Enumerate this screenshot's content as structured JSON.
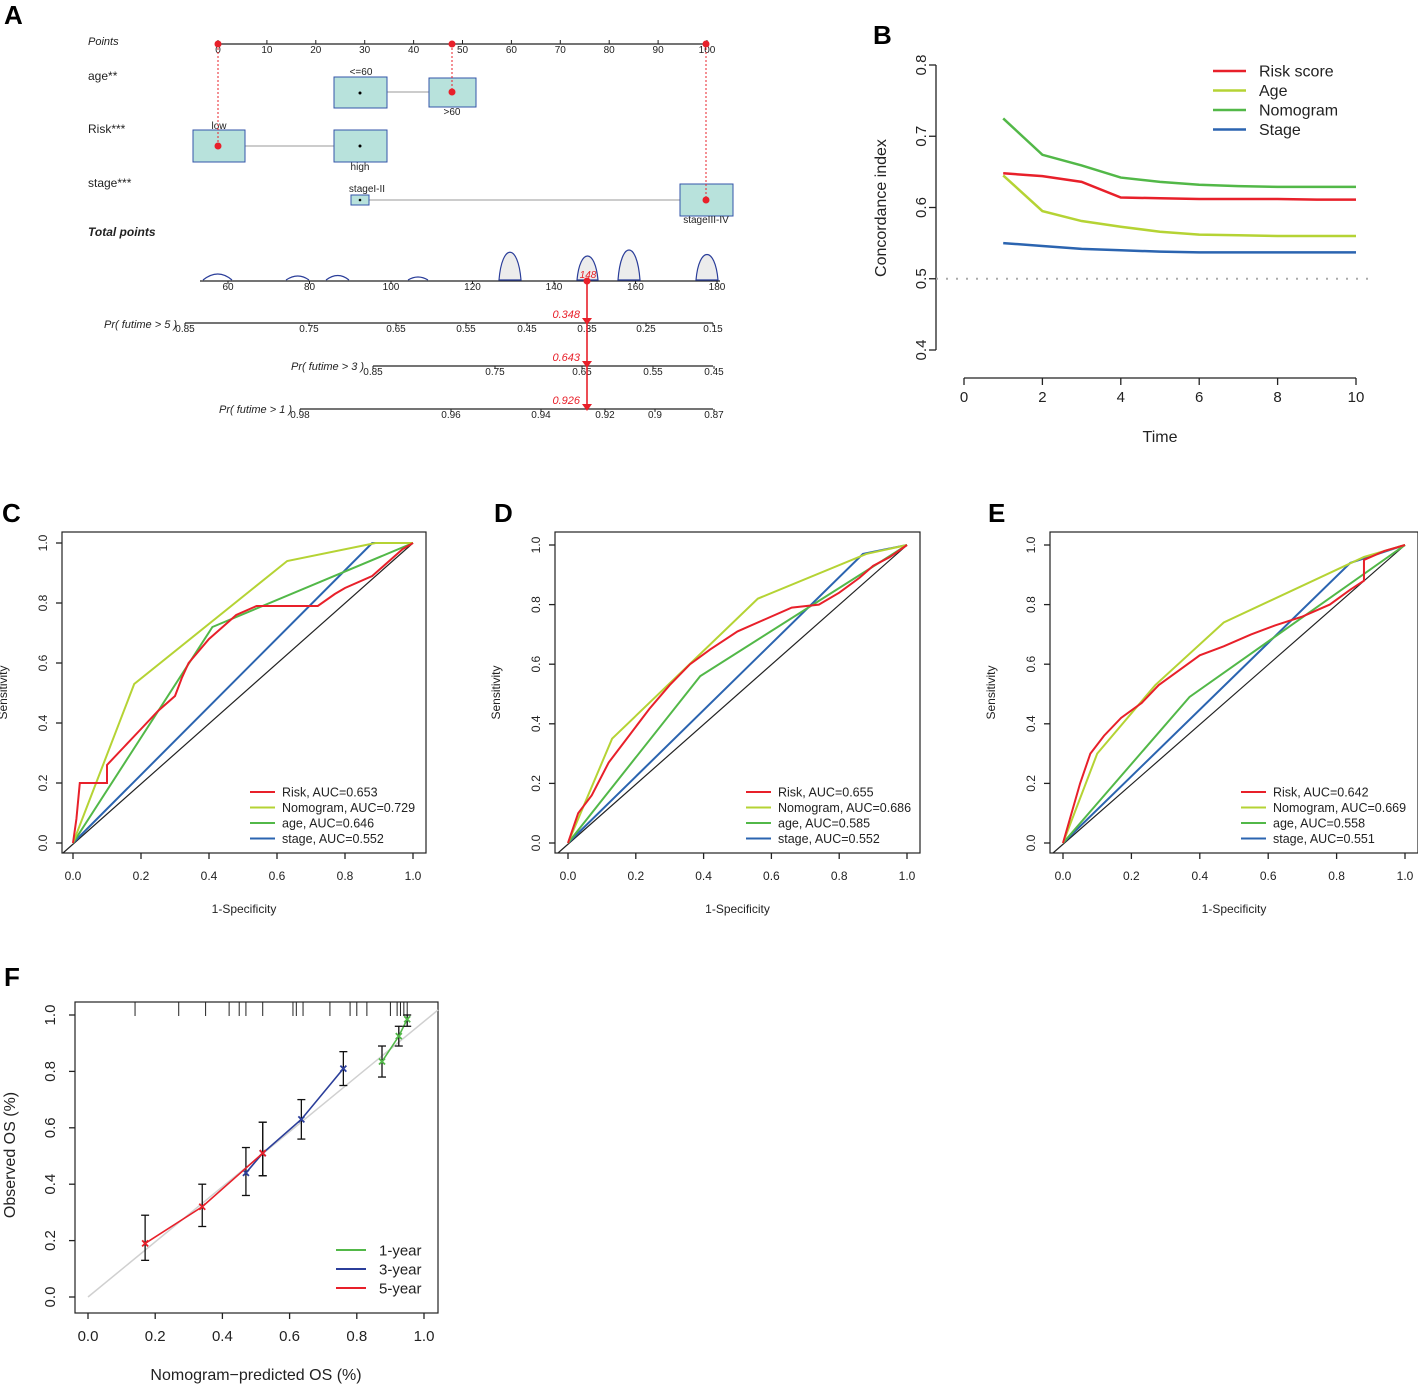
{
  "panels": {
    "A": {
      "label": "A",
      "row_labels": [
        "Points",
        "age**",
        "Risk***",
        "stage***",
        "Total points",
        "Pr( futime > 5 )",
        "Pr( futime > 3 )",
        "Pr( futime > 1 )"
      ],
      "points_ticks": [
        "0",
        "10",
        "20",
        "30",
        "40",
        "50",
        "60",
        "70",
        "80",
        "90",
        "100"
      ],
      "age_levels": [
        "<=60",
        ">60"
      ],
      "risk_levels": [
        "low",
        "high"
      ],
      "stage_levels": [
        "stageI-II",
        "stageIII-IV"
      ],
      "total_ticks": [
        "60",
        "80",
        "100",
        "120",
        "140",
        "160",
        "180"
      ],
      "total_value": "148",
      "pr5_ticks": [
        "0.85",
        "0.75",
        "0.65",
        "0.55",
        "0.45",
        "0.35",
        "0.25",
        "0.15"
      ],
      "pr3_ticks": [
        "0.85",
        "0.75",
        "0.65",
        "0.55",
        "0.45"
      ],
      "pr1_ticks": [
        "0.98",
        "0.96",
        "0.94",
        "0.92",
        "0.9",
        "0.87"
      ],
      "pred_values": [
        "0.348",
        "0.643",
        "0.926"
      ],
      "colors": {
        "box": "#b8e2dc",
        "box_border": "#3355aa",
        "marker": "#e8202a"
      }
    },
    "B": {
      "label": "B"
    },
    "C": {
      "label": "C"
    },
    "D": {
      "label": "D"
    },
    "E": {
      "label": "E"
    },
    "F": {
      "label": "F"
    }
  },
  "chart_data": [
    {
      "id": "B",
      "type": "line",
      "title": "",
      "xlabel": "Time",
      "ylabel": "Concordance index",
      "xlim": [
        0,
        10
      ],
      "ylim": [
        0.4,
        0.8
      ],
      "xticks": [
        "0",
        "2",
        "4",
        "6",
        "8",
        "10"
      ],
      "yticks": [
        "0.4",
        "0.5",
        "0.6",
        "0.7",
        "0.8"
      ],
      "reference_line": 0.5,
      "x": [
        1,
        2,
        3,
        4,
        5,
        6,
        7,
        8,
        9,
        10
      ],
      "series": [
        {
          "name": "Risk score",
          "color": "#e8202a",
          "values": [
            0.648,
            0.644,
            0.636,
            0.614,
            0.613,
            0.612,
            0.612,
            0.612,
            0.611,
            0.611
          ]
        },
        {
          "name": "Age",
          "color": "#b5d334",
          "values": [
            0.645,
            0.595,
            0.581,
            0.573,
            0.566,
            0.562,
            0.561,
            0.56,
            0.56,
            0.56
          ]
        },
        {
          "name": "Nomogram",
          "color": "#52b848",
          "values": [
            0.725,
            0.674,
            0.659,
            0.642,
            0.636,
            0.632,
            0.63,
            0.629,
            0.629,
            0.629
          ]
        },
        {
          "name": "Stage",
          "color": "#2b64b0",
          "values": [
            0.55,
            0.546,
            0.542,
            0.54,
            0.538,
            0.537,
            0.537,
            0.537,
            0.537,
            0.537
          ]
        }
      ]
    },
    {
      "id": "C",
      "type": "line",
      "title": "",
      "xlabel": "1-Specificity",
      "ylabel": "Sensitivity",
      "xlim": [
        0,
        1
      ],
      "ylim": [
        0,
        1
      ],
      "xticks": [
        "0.0",
        "0.2",
        "0.4",
        "0.6",
        "0.8",
        "1.0"
      ],
      "yticks": [
        "0.0",
        "0.2",
        "0.4",
        "0.6",
        "0.8",
        "1.0"
      ],
      "series": [
        {
          "name": "Risk, AUC=0.653",
          "color": "#e8202a",
          "points": [
            [
              0,
              0
            ],
            [
              0.01,
              0.08
            ],
            [
              0.02,
              0.2
            ],
            [
              0.1,
              0.2
            ],
            [
              0.1,
              0.26
            ],
            [
              0.15,
              0.32
            ],
            [
              0.2,
              0.38
            ],
            [
              0.25,
              0.44
            ],
            [
              0.3,
              0.49
            ],
            [
              0.32,
              0.55
            ],
            [
              0.34,
              0.6
            ],
            [
              0.37,
              0.64
            ],
            [
              0.4,
              0.68
            ],
            [
              0.44,
              0.72
            ],
            [
              0.48,
              0.76
            ],
            [
              0.54,
              0.79
            ],
            [
              0.72,
              0.79
            ],
            [
              0.77,
              0.83
            ],
            [
              0.8,
              0.85
            ],
            [
              0.88,
              0.89
            ],
            [
              0.93,
              0.94
            ],
            [
              0.97,
              0.98
            ],
            [
              1,
              1
            ]
          ]
        },
        {
          "name": "Nomogram, AUC=0.729",
          "color": "#b5d334",
          "points": [
            [
              0,
              0
            ],
            [
              0.18,
              0.53
            ],
            [
              0.63,
              0.94
            ],
            [
              0.89,
              1
            ],
            [
              1,
              1
            ]
          ]
        },
        {
          "name": "age, AUC=0.646",
          "color": "#52b848",
          "points": [
            [
              0,
              0
            ],
            [
              0.41,
              0.72
            ],
            [
              1,
              1
            ]
          ]
        },
        {
          "name": "stage, AUC=0.552",
          "color": "#2b64b0",
          "points": [
            [
              0,
              0
            ],
            [
              0.88,
              1
            ],
            [
              1,
              1
            ]
          ]
        }
      ]
    },
    {
      "id": "D",
      "type": "line",
      "title": "",
      "xlabel": "1-Specificity",
      "ylabel": "Sensitivity",
      "xlim": [
        0,
        1
      ],
      "ylim": [
        0,
        1
      ],
      "xticks": [
        "0.0",
        "0.2",
        "0.4",
        "0.6",
        "0.8",
        "1.0"
      ],
      "yticks": [
        "0.0",
        "0.2",
        "0.4",
        "0.6",
        "0.8",
        "1.0"
      ],
      "series": [
        {
          "name": "Risk, AUC=0.655",
          "color": "#e8202a",
          "points": [
            [
              0,
              0
            ],
            [
              0.03,
              0.1
            ],
            [
              0.07,
              0.16
            ],
            [
              0.12,
              0.27
            ],
            [
              0.18,
              0.36
            ],
            [
              0.24,
              0.45
            ],
            [
              0.3,
              0.53
            ],
            [
              0.36,
              0.6
            ],
            [
              0.42,
              0.65
            ],
            [
              0.5,
              0.71
            ],
            [
              0.58,
              0.75
            ],
            [
              0.66,
              0.79
            ],
            [
              0.74,
              0.8
            ],
            [
              0.8,
              0.84
            ],
            [
              0.86,
              0.89
            ],
            [
              0.9,
              0.93
            ],
            [
              0.95,
              0.96
            ],
            [
              1,
              1
            ]
          ]
        },
        {
          "name": "Nomogram, AUC=0.686",
          "color": "#b5d334",
          "points": [
            [
              0,
              0
            ],
            [
              0.13,
              0.35
            ],
            [
              0.56,
              0.82
            ],
            [
              0.88,
              0.97
            ],
            [
              1,
              1
            ]
          ]
        },
        {
          "name": "age, AUC=0.585",
          "color": "#52b848",
          "points": [
            [
              0,
              0
            ],
            [
              0.39,
              0.56
            ],
            [
              1,
              1
            ]
          ]
        },
        {
          "name": "stage, AUC=0.552",
          "color": "#2b64b0",
          "points": [
            [
              0,
              0
            ],
            [
              0.87,
              0.97
            ],
            [
              1,
              1
            ]
          ]
        }
      ]
    },
    {
      "id": "E",
      "type": "line",
      "title": "",
      "xlabel": "1-Specificity",
      "ylabel": "Sensitivity",
      "xlim": [
        0,
        1
      ],
      "ylim": [
        0,
        1
      ],
      "xticks": [
        "0.0",
        "0.2",
        "0.4",
        "0.6",
        "0.8",
        "1.0"
      ],
      "yticks": [
        "0.0",
        "0.2",
        "0.4",
        "0.6",
        "0.8",
        "1.0"
      ],
      "series": [
        {
          "name": "Risk, AUC=0.642",
          "color": "#e8202a",
          "points": [
            [
              0,
              0
            ],
            [
              0.02,
              0.08
            ],
            [
              0.05,
              0.2
            ],
            [
              0.08,
              0.3
            ],
            [
              0.12,
              0.36
            ],
            [
              0.17,
              0.42
            ],
            [
              0.23,
              0.47
            ],
            [
              0.28,
              0.53
            ],
            [
              0.34,
              0.58
            ],
            [
              0.4,
              0.63
            ],
            [
              0.47,
              0.66
            ],
            [
              0.55,
              0.7
            ],
            [
              0.62,
              0.73
            ],
            [
              0.7,
              0.76
            ],
            [
              0.78,
              0.8
            ],
            [
              0.84,
              0.85
            ],
            [
              0.88,
              0.88
            ],
            [
              0.88,
              0.95
            ],
            [
              0.94,
              0.98
            ],
            [
              1,
              1
            ]
          ]
        },
        {
          "name": "Nomogram, AUC=0.669",
          "color": "#b5d334",
          "points": [
            [
              0,
              0
            ],
            [
              0.1,
              0.3
            ],
            [
              0.27,
              0.53
            ],
            [
              0.47,
              0.74
            ],
            [
              0.88,
              0.96
            ],
            [
              1,
              1
            ]
          ]
        },
        {
          "name": "age, AUC=0.558",
          "color": "#52b848",
          "points": [
            [
              0,
              0
            ],
            [
              0.37,
              0.49
            ],
            [
              1,
              1
            ]
          ]
        },
        {
          "name": "stage, AUC=0.551",
          "color": "#2b64b0",
          "points": [
            [
              0,
              0
            ],
            [
              0.84,
              0.94
            ],
            [
              1,
              1
            ]
          ]
        }
      ]
    },
    {
      "id": "F",
      "type": "line",
      "title": "",
      "xlabel": "Nomogram−predicted OS (%)",
      "ylabel": "Observed OS (%)",
      "xlim": [
        0,
        1
      ],
      "ylim": [
        0,
        1
      ],
      "xticks": [
        "0.0",
        "0.2",
        "0.4",
        "0.6",
        "0.8",
        "1.0"
      ],
      "yticks": [
        "0.0",
        "0.2",
        "0.4",
        "0.6",
        "0.8",
        "1.0"
      ],
      "rug": [
        0.14,
        0.27,
        0.35,
        0.42,
        0.45,
        0.47,
        0.52,
        0.61,
        0.62,
        0.64,
        0.72,
        0.78,
        0.8,
        0.83,
        0.9,
        0.92,
        0.93,
        0.94,
        0.95
      ],
      "series": [
        {
          "name": "1-year",
          "color": "#52b848",
          "points": [
            [
              0.875,
              0.835
            ],
            [
              0.925,
              0.925
            ],
            [
              0.95,
              0.985
            ]
          ],
          "err_low": [
            0.78,
            0.89,
            0.96
          ],
          "err_high": [
            0.89,
            0.96,
            1.0
          ]
        },
        {
          "name": "3-year",
          "color": "#2b3e9a",
          "points": [
            [
              0.47,
              0.44
            ],
            [
              0.52,
              0.51
            ],
            [
              0.635,
              0.63
            ],
            [
              0.76,
              0.81
            ]
          ],
          "err_low": [
            0.36,
            0.43,
            0.56,
            0.75
          ],
          "err_high": [
            0.53,
            0.62,
            0.7,
            0.87
          ]
        },
        {
          "name": "5-year",
          "color": "#e8202a",
          "points": [
            [
              0.17,
              0.19
            ],
            [
              0.34,
              0.32
            ],
            [
              0.52,
              0.51
            ]
          ],
          "err_low": [
            0.13,
            0.25,
            0.43
          ],
          "err_high": [
            0.29,
            0.4,
            0.62
          ]
        }
      ]
    }
  ]
}
